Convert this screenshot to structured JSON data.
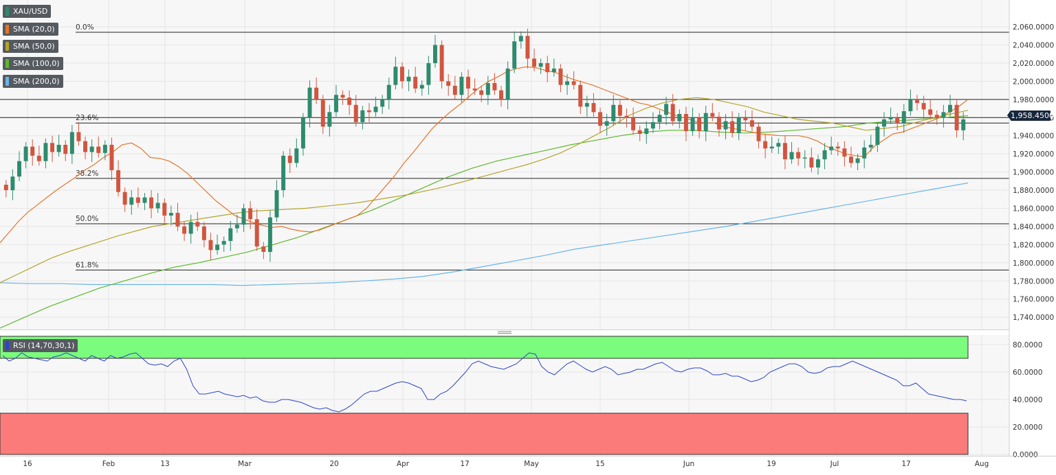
{
  "legend": {
    "symbol": "XAU/USD",
    "sma20": "SMA (20,0)",
    "sma50": "SMA (50,0)",
    "sma100": "SMA (100,0)",
    "sma200": "SMA (200,0)",
    "rsi": "RSI (14,70,30,1)"
  },
  "colors": {
    "up": "#2e8b6e",
    "down": "#d2553f",
    "sma20": "#e8742a",
    "sma50": "#b5a42a",
    "sma100": "#5cb82c",
    "sma200": "#6ab4e8",
    "rsi_line": "#2c44c8",
    "overbought": "#7cfc7c",
    "oversold": "#fb7b7b"
  },
  "current_price": "1,958.4500",
  "chart_data": {
    "type": "candlestick",
    "instrument": "XAU/USD",
    "timeframe": "daily",
    "x_labels": [
      "16",
      "Feb",
      "13",
      "Mar",
      "20",
      "Apr",
      "17",
      "May",
      "15",
      "Jun",
      "19",
      "Jul",
      "17",
      "Aug"
    ],
    "y_ticks": [
      "2,060.0000",
      "2,040.0000",
      "2,020.0000",
      "2,000.0000",
      "1,980.0000",
      "1,960.0000",
      "1,940.0000",
      "1,920.0000",
      "1,900.0000",
      "1,880.0000",
      "1,860.0000",
      "1,840.0000",
      "1,820.0000",
      "1,800.0000",
      "1,780.0000",
      "1,760.0000",
      "1,740.0000"
    ],
    "y_tick_values": [
      2060,
      2040,
      2020,
      2000,
      1980,
      1960,
      1940,
      1920,
      1900,
      1880,
      1860,
      1840,
      1820,
      1800,
      1780,
      1760,
      1740
    ],
    "ylim": [
      1728,
      2082
    ],
    "fibonacci": [
      {
        "label": "0.0%",
        "value": 2054
      },
      {
        "label": "23.6%",
        "value": 1954
      },
      {
        "label": "38.2%",
        "value": 1893
      },
      {
        "label": "50.0%",
        "value": 1843
      },
      {
        "label": "61.8%",
        "value": 1792
      }
    ],
    "horizontal_levels": [
      1980,
      1960
    ],
    "rsi_ticks": [
      "80.0000",
      "60.0000",
      "40.0000",
      "20.0000",
      "0.0000"
    ],
    "rsi_tick_values": [
      80,
      60,
      40,
      20,
      0
    ],
    "rsi_levels": {
      "overbought": 70,
      "oversold": 30
    },
    "closes": [
      1880,
      1895,
      1912,
      1928,
      1918,
      1912,
      1932,
      1922,
      1930,
      1920,
      1944,
      1934,
      1922,
      1928,
      1921,
      1930,
      1902,
      1878,
      1864,
      1872,
      1866,
      1872,
      1860,
      1866,
      1852,
      1855,
      1840,
      1832,
      1845,
      1840,
      1825,
      1814,
      1820,
      1824,
      1838,
      1842,
      1860,
      1848,
      1818,
      1812,
      1850,
      1880,
      1918,
      1910,
      1926,
      1960,
      1993,
      1980,
      1950,
      1966,
      1985,
      1982,
      1974,
      1955,
      1968,
      1966,
      1972,
      1980,
      1996,
      2016,
      2000,
      2005,
      1992,
      1996,
      2020,
      2040,
      2000,
      1995,
      1985,
      2005,
      1992,
      1990,
      1985,
      1998,
      1990,
      1980,
      2014,
      2044,
      2050,
      2025,
      2016,
      2020,
      2010,
      2014,
      1996,
      2000,
      1996,
      1972,
      1976,
      1966,
      1951,
      1956,
      1974,
      1962,
      1960,
      1946,
      1942,
      1948,
      1955,
      1963,
      1975,
      1956,
      1964,
      1945,
      1960,
      1945,
      1965,
      1961,
      1947,
      1956,
      1943,
      1960,
      1957,
      1950,
      1934,
      1926,
      1928,
      1932,
      1914,
      1922,
      1915,
      1916,
      1905,
      1914,
      1924,
      1928,
      1926,
      1917,
      1910,
      1915,
      1927,
      1930,
      1950,
      1958,
      1960,
      1954,
      1967,
      1980,
      1976,
      1969,
      1963,
      1960,
      1966,
      1974,
      1946,
      1958
    ],
    "sma20": [
      1822,
      1834,
      1846,
      1856,
      1864,
      1872,
      1880,
      1887,
      1894,
      1902,
      1908,
      1916,
      1922,
      1930,
      1932,
      1926,
      1916,
      1915,
      1912,
      1906,
      1898,
      1888,
      1878,
      1868,
      1860,
      1852,
      1848,
      1844,
      1841,
      1839,
      1840,
      1837,
      1835,
      1834,
      1836,
      1840,
      1844,
      1848,
      1852,
      1860,
      1872,
      1884,
      1896,
      1910,
      1922,
      1935,
      1948,
      1958,
      1967,
      1975,
      1984,
      1993,
      2000,
      2005,
      2011,
      2014,
      2016,
      2015,
      2012,
      2010,
      2006,
      2002,
      1999,
      1996,
      1992,
      1988,
      1984,
      1980,
      1976,
      1974,
      1970,
      1966,
      1962,
      1959,
      1956,
      1954,
      1954,
      1950,
      1948,
      1946,
      1944,
      1942,
      1941,
      1940,
      1940,
      1940,
      1938,
      1934,
      1928,
      1924,
      1920,
      1918,
      1917,
      1928,
      1935,
      1942,
      1944,
      1948,
      1952,
      1956,
      1960,
      1966,
      1972,
      1980
    ],
    "sma50": [
      1778,
      1787,
      1796,
      1805,
      1812,
      1818,
      1824,
      1830,
      1835,
      1840,
      1843,
      1846,
      1849,
      1852,
      1855,
      1857,
      1858,
      1859,
      1860,
      1862,
      1864,
      1866,
      1869,
      1872,
      1875,
      1879,
      1883,
      1888,
      1893,
      1898,
      1903,
      1908,
      1914,
      1921,
      1930,
      1940,
      1950,
      1962,
      1970,
      1976,
      1980,
      1982,
      1980,
      1976,
      1972,
      1966,
      1962,
      1958,
      1956,
      1954,
      1950,
      1946,
      1948,
      1950,
      1955,
      1960,
      1964,
      1968
    ],
    "sma100": [
      1728,
      1740,
      1752,
      1762,
      1772,
      1780,
      1788,
      1795,
      1800,
      1806,
      1812,
      1820,
      1828,
      1838,
      1848,
      1858,
      1870,
      1882,
      1894,
      1904,
      1912,
      1918,
      1924,
      1930,
      1935,
      1940,
      1944,
      1946,
      1946,
      1944,
      1943,
      1944,
      1946,
      1948,
      1950,
      1954,
      1956,
      1958,
      1960,
      1962
    ],
    "sma200": [
      1778,
      1777,
      1777,
      1776,
      1776,
      1776,
      1776,
      1776,
      1775,
      1776,
      1777,
      1778,
      1780,
      1782,
      1785,
      1790,
      1796,
      1802,
      1808,
      1815,
      1820,
      1825,
      1830,
      1835,
      1840,
      1846,
      1852,
      1858,
      1864,
      1870,
      1876,
      1882,
      1888
    ],
    "rsi": [
      72,
      68,
      70,
      74,
      71,
      70,
      69,
      68,
      71,
      72,
      74,
      72,
      70,
      68,
      72,
      70,
      68,
      72,
      70,
      71,
      73,
      74,
      70,
      66,
      65,
      66,
      64,
      68,
      70,
      62,
      50,
      44,
      44,
      45,
      46,
      44,
      43,
      42,
      43,
      41,
      42,
      39,
      38,
      38,
      40,
      40,
      39,
      38,
      36,
      34,
      33,
      34,
      32,
      31,
      33,
      36,
      40,
      44,
      46,
      46,
      48,
      50,
      52,
      53,
      52,
      50,
      48,
      40,
      40,
      44,
      46,
      50,
      55,
      60,
      66,
      68,
      66,
      64,
      63,
      62,
      64,
      66,
      70,
      74,
      73,
      64,
      60,
      58,
      62,
      66,
      68,
      65,
      62,
      60,
      62,
      64,
      62,
      58,
      59,
      60,
      62,
      62,
      64,
      66,
      67,
      64,
      61,
      60,
      62,
      63,
      63,
      61,
      58,
      58,
      59,
      57,
      57,
      55,
      53,
      54,
      56,
      60,
      62,
      64,
      66,
      66,
      64,
      60,
      59,
      60,
      63,
      64,
      64,
      66,
      68,
      66,
      64,
      62,
      60,
      58,
      56,
      54,
      50,
      50,
      52,
      48,
      44,
      43,
      42,
      41,
      40,
      40,
      39
    ],
    "rsi_range": [
      0,
      86
    ]
  }
}
